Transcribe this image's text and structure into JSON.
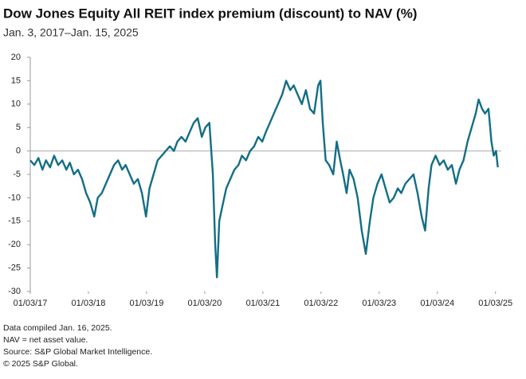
{
  "chart_data": {
    "type": "line",
    "title": "Dow Jones Equity All REIT index premium (discount) to NAV (%)",
    "subtitle": "Jan. 3, 2017–Jan. 15, 2025",
    "notes": [
      "Data compiled Jan. 16, 2025.",
      "NAV = net asset value.",
      "Source: S&P Global Market Intelligence.",
      "© 2025 S&P Global."
    ],
    "xlim": [
      2017,
      2025.1
    ],
    "xticks": [
      {
        "value": 2017,
        "label": "01/03/17"
      },
      {
        "value": 2018,
        "label": "01/03/18"
      },
      {
        "value": 2019,
        "label": "01/03/19"
      },
      {
        "value": 2020,
        "label": "01/03/20"
      },
      {
        "value": 2021,
        "label": "01/03/21"
      },
      {
        "value": 2022,
        "label": "01/03/22"
      },
      {
        "value": 2023,
        "label": "01/03/23"
      },
      {
        "value": 2024,
        "label": "01/03/24"
      },
      {
        "value": 2025,
        "label": "01/03/25"
      }
    ],
    "ylim": [
      -30,
      20
    ],
    "yticks": [
      20,
      15,
      10,
      5,
      0,
      -5,
      -10,
      -15,
      -20,
      -25,
      -30
    ],
    "zero_line": true,
    "series": [
      {
        "color": "#136e86",
        "x": [
          2017.0,
          2017.07,
          2017.14,
          2017.21,
          2017.27,
          2017.34,
          2017.41,
          2017.48,
          2017.55,
          2017.62,
          2017.68,
          2017.75,
          2017.82,
          2017.89,
          2017.96,
          2018.03,
          2018.1,
          2018.16,
          2018.23,
          2018.3,
          2018.37,
          2018.44,
          2018.51,
          2018.58,
          2018.64,
          2018.71,
          2018.78,
          2018.85,
          2018.92,
          2018.99,
          2019.05,
          2019.12,
          2019.19,
          2019.26,
          2019.33,
          2019.4,
          2019.47,
          2019.53,
          2019.6,
          2019.67,
          2019.74,
          2019.81,
          2019.88,
          2019.95,
          2020.01,
          2020.08,
          2020.14,
          2020.18,
          2020.21,
          2020.25,
          2020.3,
          2020.37,
          2020.44,
          2020.51,
          2020.58,
          2020.64,
          2020.71,
          2020.78,
          2020.85,
          2020.92,
          2020.99,
          2021.05,
          2021.12,
          2021.19,
          2021.26,
          2021.33,
          2021.4,
          2021.47,
          2021.53,
          2021.6,
          2021.67,
          2021.74,
          2021.81,
          2021.88,
          2021.95,
          2021.99,
          2022.03,
          2022.08,
          2022.14,
          2022.21,
          2022.27,
          2022.33,
          2022.38,
          2022.44,
          2022.49,
          2022.56,
          2022.63,
          2022.7,
          2022.77,
          2022.84,
          2022.9,
          2022.97,
          2023.04,
          2023.11,
          2023.18,
          2023.25,
          2023.32,
          2023.38,
          2023.45,
          2023.52,
          2023.59,
          2023.66,
          2023.73,
          2023.79,
          2023.85,
          2023.9,
          2023.97,
          2024.04,
          2024.11,
          2024.18,
          2024.25,
          2024.32,
          2024.38,
          2024.45,
          2024.52,
          2024.59,
          2024.66,
          2024.71,
          2024.77,
          2024.82,
          2024.88,
          2024.93,
          2024.97,
          2025.01,
          2025.04
        ],
        "values": [
          -2,
          -3,
          -1.5,
          -4,
          -2,
          -3.5,
          -1,
          -3,
          -2,
          -4,
          -2.5,
          -5,
          -4,
          -6,
          -9,
          -11,
          -14,
          -10,
          -9,
          -7,
          -5,
          -3,
          -2,
          -4,
          -3,
          -5,
          -7,
          -6,
          -9,
          -14,
          -8,
          -5,
          -2,
          -1,
          0,
          1,
          0,
          2,
          3,
          2,
          4,
          6,
          7,
          3,
          5,
          6,
          -5,
          -20,
          -27,
          -15,
          -12,
          -8,
          -6,
          -4,
          -3,
          -1,
          -2,
          0,
          1,
          3,
          2,
          4,
          6,
          8,
          10,
          12,
          15,
          13,
          14,
          12,
          10,
          13,
          9,
          8,
          14,
          15,
          6,
          -2,
          -3,
          -5,
          2,
          -2,
          -5,
          -9,
          -4,
          -6,
          -10,
          -17,
          -22,
          -15,
          -10,
          -7,
          -5,
          -8,
          -11,
          -10,
          -8,
          -9,
          -7,
          -6,
          -5,
          -9,
          -14,
          -17,
          -8,
          -3,
          -1,
          -3,
          -2,
          -4,
          -3,
          -7,
          -4,
          -2,
          2,
          5,
          8,
          11,
          9,
          8,
          9,
          2,
          -1,
          0,
          -3.5
        ]
      }
    ]
  }
}
